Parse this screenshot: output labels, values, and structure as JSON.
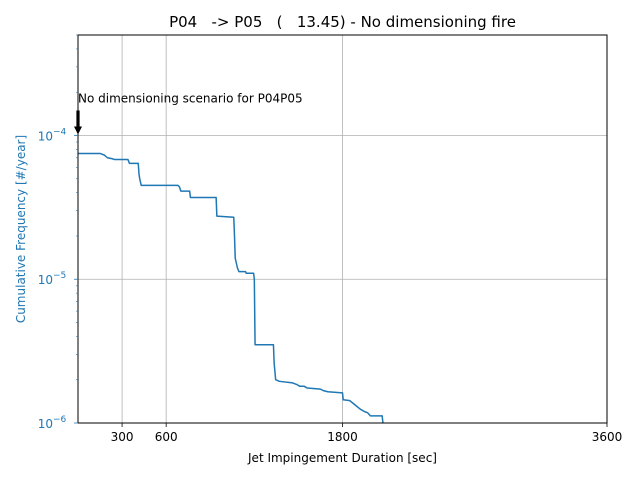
{
  "chart_data": {
    "type": "line",
    "title": "P04   -> P05   (   13.45) - No dimensioning fire",
    "xlabel": "Jet Impingement Duration [sec]",
    "ylabel": "Cumulative Frequency [#/year]",
    "xlim": [
      0,
      3600
    ],
    "ylim": [
      1e-06,
      0.0005
    ],
    "yscale": "log",
    "grid": true,
    "xticks": [
      {
        "value": 300,
        "label": "300"
      },
      {
        "value": 600,
        "label": "600"
      },
      {
        "value": 1800,
        "label": "1800"
      },
      {
        "value": 3600,
        "label": "3600"
      }
    ],
    "yticks": [
      {
        "value": 1e-06,
        "base": "10",
        "exp": "−6"
      },
      {
        "value": 1e-05,
        "base": "10",
        "exp": "−5"
      },
      {
        "value": 0.0001,
        "base": "10",
        "exp": "−4"
      }
    ],
    "annotation": {
      "text": "No dimensioning scenario for P04P05",
      "x": 0,
      "y": 0.0001
    },
    "series": [
      {
        "color": "#1f77b4",
        "points": [
          [
            0,
            7.5e-05
          ],
          [
            150,
            7.5e-05
          ],
          [
            180,
            7.3e-05
          ],
          [
            200,
            7e-05
          ],
          [
            230,
            6.9e-05
          ],
          [
            250,
            6.8e-05
          ],
          [
            340,
            6.8e-05
          ],
          [
            350,
            6.4e-05
          ],
          [
            410,
            6.4e-05
          ],
          [
            415,
            5.4e-05
          ],
          [
            420,
            5e-05
          ],
          [
            430,
            4.5e-05
          ],
          [
            680,
            4.5e-05
          ],
          [
            690,
            4.4e-05
          ],
          [
            700,
            4.1e-05
          ],
          [
            760,
            4.1e-05
          ],
          [
            765,
            3.7e-05
          ],
          [
            940,
            3.7e-05
          ],
          [
            945,
            2.75e-05
          ],
          [
            1060,
            2.7e-05
          ],
          [
            1065,
            2e-05
          ],
          [
            1070,
            1.4e-05
          ],
          [
            1085,
            1.2e-05
          ],
          [
            1095,
            1.13e-05
          ],
          [
            1140,
            1.13e-05
          ],
          [
            1145,
            1.1e-05
          ],
          [
            1195,
            1.1e-05
          ],
          [
            1200,
            1e-05
          ],
          [
            1205,
            3.5e-06
          ],
          [
            1330,
            3.5e-06
          ],
          [
            1335,
            2.6e-06
          ],
          [
            1345,
            2e-06
          ],
          [
            1370,
            1.95e-06
          ],
          [
            1460,
            1.9e-06
          ],
          [
            1490,
            1.85e-06
          ],
          [
            1510,
            1.8e-06
          ],
          [
            1540,
            1.8e-06
          ],
          [
            1560,
            1.75e-06
          ],
          [
            1650,
            1.72e-06
          ],
          [
            1670,
            1.68e-06
          ],
          [
            1700,
            1.65e-06
          ],
          [
            1800,
            1.62e-06
          ],
          [
            1805,
            1.45e-06
          ],
          [
            1850,
            1.43e-06
          ],
          [
            1880,
            1.35e-06
          ],
          [
            1920,
            1.25e-06
          ],
          [
            1950,
            1.2e-06
          ],
          [
            1970,
            1.18e-06
          ],
          [
            1990,
            1.12e-06
          ],
          [
            2070,
            1.12e-06
          ],
          [
            2075,
            1e-06
          ]
        ]
      }
    ]
  }
}
